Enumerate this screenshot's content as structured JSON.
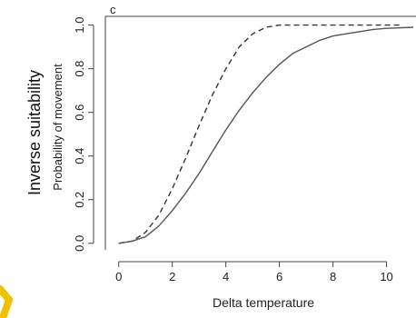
{
  "overlay_label": "Inverse suitability",
  "panel_label": "c",
  "accent_color": "#f2c200",
  "chart_data": {
    "type": "line",
    "xlabel": "Delta temperature",
    "ylabel": "Probability of movement",
    "xlim": [
      -0.5,
      11.1
    ],
    "ylim": [
      -0.03,
      1.04
    ],
    "xticks": [
      0,
      2,
      4,
      6,
      8,
      10
    ],
    "yticks": [
      0.0,
      0.2,
      0.4,
      0.6,
      0.8,
      1.0
    ],
    "xtick_labels": [
      "0",
      "2",
      "4",
      "6",
      "8",
      "10"
    ],
    "ytick_labels": [
      "0.0",
      "0.2",
      "0.4",
      "0.6",
      "0.8",
      "1.0"
    ],
    "grid": false,
    "series": [
      {
        "style": "dashed",
        "color": "#333333",
        "x": [
          0,
          0.5,
          1,
          1.5,
          2,
          2.5,
          3,
          3.5,
          4,
          4.5,
          5,
          5.5,
          6,
          6.5,
          7,
          8,
          9,
          10,
          10.5
        ],
        "y": [
          0.0,
          0.01,
          0.05,
          0.13,
          0.25,
          0.39,
          0.54,
          0.68,
          0.8,
          0.9,
          0.96,
          0.99,
          1.0,
          1.0,
          1.0,
          1.0,
          1.0,
          1.0,
          1.0
        ]
      },
      {
        "style": "solid",
        "color": "#555555",
        "x": [
          0,
          0.5,
          1,
          1.5,
          2,
          2.5,
          3,
          3.5,
          4,
          4.5,
          5,
          5.5,
          6,
          6.5,
          7,
          7.5,
          8,
          8.5,
          9,
          9.5,
          10,
          11
        ],
        "y": [
          0.0,
          0.01,
          0.03,
          0.08,
          0.15,
          0.23,
          0.32,
          0.42,
          0.52,
          0.61,
          0.69,
          0.76,
          0.82,
          0.87,
          0.9,
          0.93,
          0.95,
          0.96,
          0.97,
          0.98,
          0.985,
          0.99
        ]
      }
    ]
  }
}
